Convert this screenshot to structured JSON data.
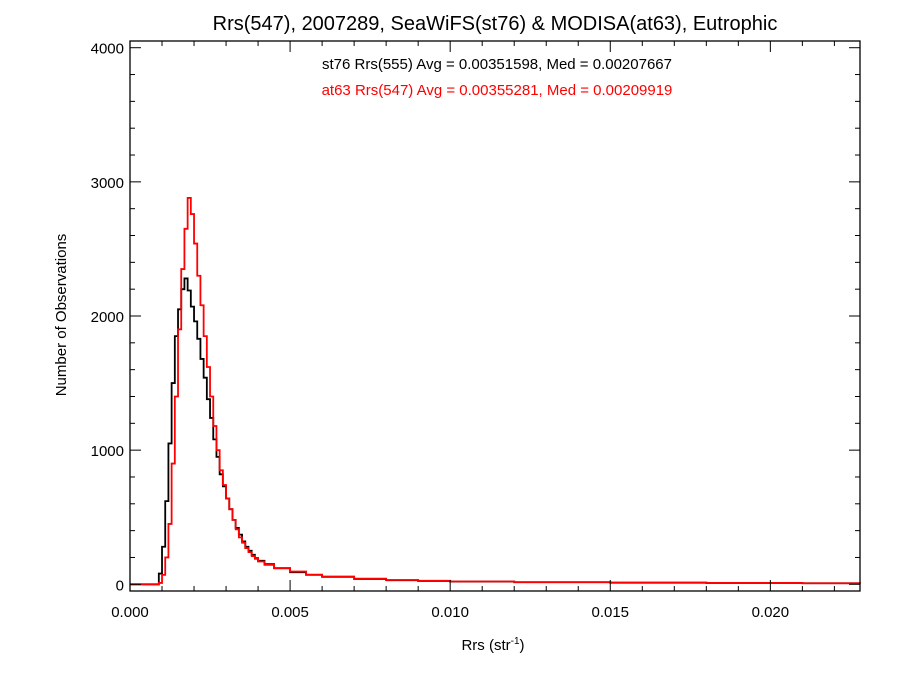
{
  "chart_data": {
    "type": "step",
    "title": "Rrs(547), 2007289, SeaWiFS(st76) & MODISA(at63), Eutrophic",
    "xlabel_main": "Rrs (str",
    "xlabel_sup": "-1",
    "xlabel_close": ")",
    "ylabel": "Number of Observations",
    "xlim": [
      0.0,
      0.0228
    ],
    "ylim": [
      -50,
      4050
    ],
    "xticks": [
      0.0,
      0.005,
      0.01,
      0.015,
      0.02
    ],
    "xtick_labels": [
      "0.000",
      "0.005",
      "0.010",
      "0.015",
      "0.020"
    ],
    "yticks": [
      0,
      1000,
      2000,
      3000,
      4000
    ],
    "ytick_labels": [
      "0",
      "1000",
      "2000",
      "3000",
      "4000"
    ],
    "grid": false,
    "legend_position": "top-center",
    "series": [
      {
        "name": "st76 Rrs(555) Avg = 0.00351598, Med = 0.00207667",
        "color": "#000000",
        "points": [
          [
            0.0,
            0
          ],
          [
            0.0008,
            0
          ],
          [
            0.0009,
            80
          ],
          [
            0.001,
            280
          ],
          [
            0.0011,
            620
          ],
          [
            0.0012,
            1050
          ],
          [
            0.0013,
            1500
          ],
          [
            0.0014,
            1850
          ],
          [
            0.0015,
            2050
          ],
          [
            0.0016,
            2200
          ],
          [
            0.0017,
            2280
          ],
          [
            0.0018,
            2190
          ],
          [
            0.0019,
            2070
          ],
          [
            0.002,
            1960
          ],
          [
            0.0021,
            1830
          ],
          [
            0.0022,
            1680
          ],
          [
            0.0023,
            1540
          ],
          [
            0.0024,
            1380
          ],
          [
            0.0025,
            1240
          ],
          [
            0.0026,
            1080
          ],
          [
            0.0027,
            950
          ],
          [
            0.0028,
            820
          ],
          [
            0.0029,
            730
          ],
          [
            0.003,
            640
          ],
          [
            0.0031,
            560
          ],
          [
            0.0032,
            480
          ],
          [
            0.0033,
            420
          ],
          [
            0.0034,
            370
          ],
          [
            0.0035,
            320
          ],
          [
            0.0036,
            280
          ],
          [
            0.0037,
            250
          ],
          [
            0.0038,
            220
          ],
          [
            0.0039,
            195
          ],
          [
            0.004,
            175
          ],
          [
            0.0042,
            150
          ],
          [
            0.0045,
            120
          ],
          [
            0.005,
            90
          ],
          [
            0.0055,
            70
          ],
          [
            0.006,
            55
          ],
          [
            0.007,
            40
          ],
          [
            0.008,
            30
          ],
          [
            0.009,
            25
          ],
          [
            0.01,
            20
          ],
          [
            0.012,
            15
          ],
          [
            0.015,
            12
          ],
          [
            0.018,
            10
          ],
          [
            0.021,
            8
          ],
          [
            0.0228,
            6
          ]
        ]
      },
      {
        "name": "at63 Rrs(547) Avg = 0.00355281, Med = 0.00209919",
        "color": "#ff0000",
        "points": [
          [
            0.0,
            0
          ],
          [
            0.0008,
            0
          ],
          [
            0.0009,
            10
          ],
          [
            0.001,
            70
          ],
          [
            0.0011,
            200
          ],
          [
            0.0012,
            450
          ],
          [
            0.0013,
            900
          ],
          [
            0.0014,
            1400
          ],
          [
            0.0015,
            1900
          ],
          [
            0.0016,
            2350
          ],
          [
            0.0017,
            2650
          ],
          [
            0.0018,
            2880
          ],
          [
            0.0019,
            2760
          ],
          [
            0.002,
            2540
          ],
          [
            0.0021,
            2300
          ],
          [
            0.0022,
            2080
          ],
          [
            0.0023,
            1850
          ],
          [
            0.0024,
            1620
          ],
          [
            0.0025,
            1400
          ],
          [
            0.0026,
            1180
          ],
          [
            0.0027,
            1000
          ],
          [
            0.0028,
            850
          ],
          [
            0.0029,
            740
          ],
          [
            0.003,
            640
          ],
          [
            0.0031,
            560
          ],
          [
            0.0032,
            480
          ],
          [
            0.0033,
            410
          ],
          [
            0.0034,
            350
          ],
          [
            0.0035,
            310
          ],
          [
            0.0036,
            270
          ],
          [
            0.0037,
            240
          ],
          [
            0.0038,
            210
          ],
          [
            0.0039,
            190
          ],
          [
            0.004,
            170
          ],
          [
            0.0042,
            145
          ],
          [
            0.0045,
            120
          ],
          [
            0.005,
            95
          ],
          [
            0.0055,
            72
          ],
          [
            0.006,
            58
          ],
          [
            0.007,
            42
          ],
          [
            0.008,
            32
          ],
          [
            0.009,
            26
          ],
          [
            0.01,
            21
          ],
          [
            0.012,
            16
          ],
          [
            0.015,
            12
          ],
          [
            0.018,
            10
          ],
          [
            0.021,
            8
          ],
          [
            0.0228,
            6
          ]
        ]
      }
    ]
  }
}
